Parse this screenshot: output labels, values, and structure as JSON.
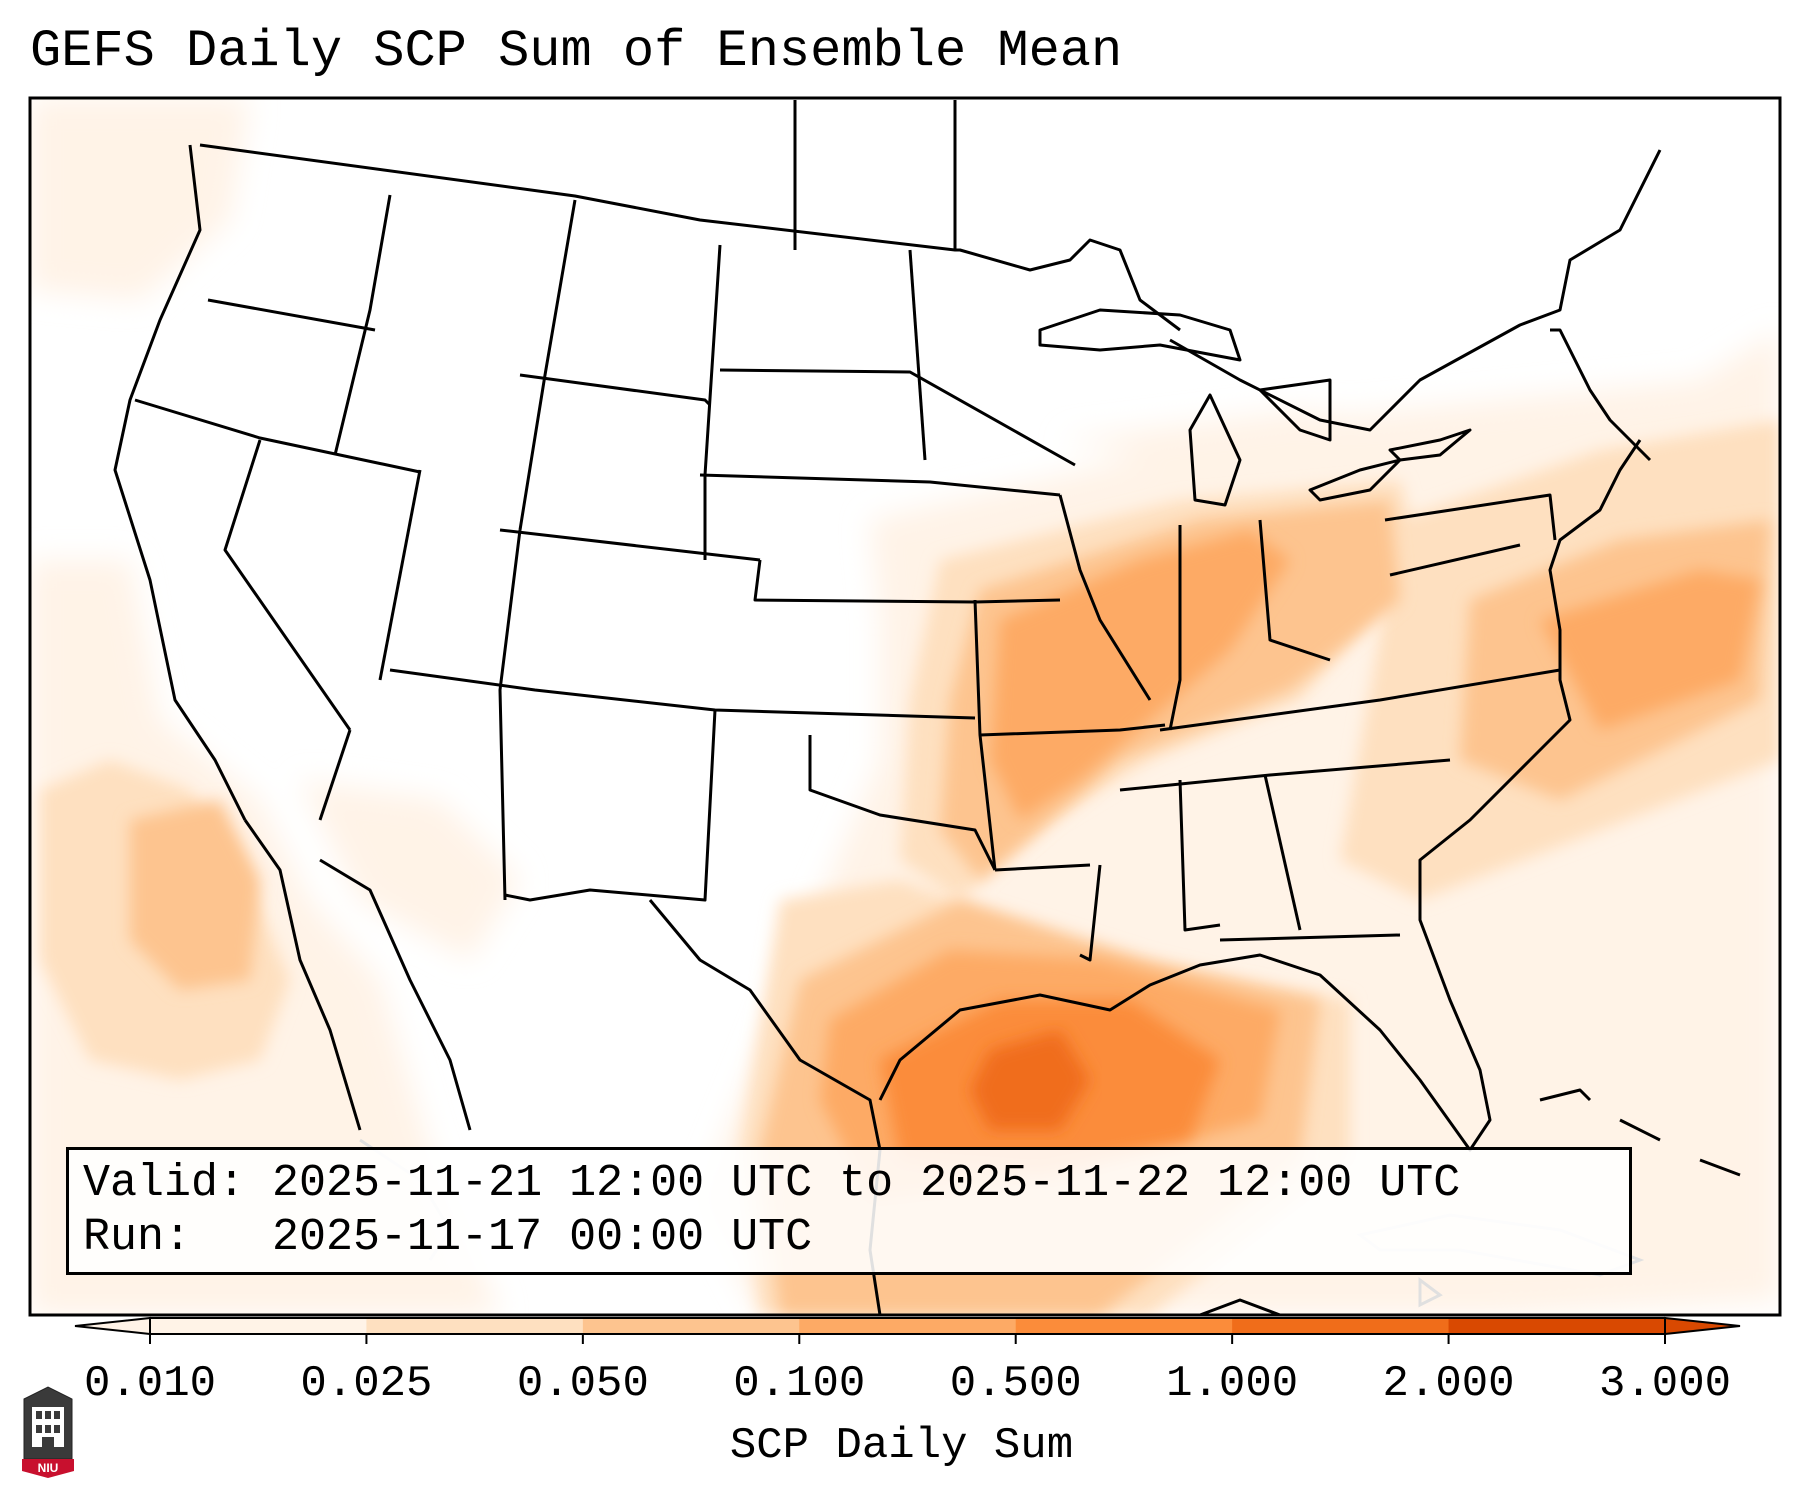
{
  "title": "GEFS Daily SCP Sum of Ensemble Mean",
  "valid_box": {
    "line1": "Valid: 2025-11-21 12:00 UTC to 2025-11-22 12:00 UTC",
    "line2": "Run:   2025-11-17 00:00 UTC"
  },
  "colorbar": {
    "label": "SCP Daily Sum",
    "ticks": [
      "0.010",
      "0.025",
      "0.050",
      "0.100",
      "0.500",
      "1.000",
      "2.000",
      "3.000"
    ],
    "colors": [
      "#fff3e7",
      "#fee0c0",
      "#fdc48f",
      "#fdaa65",
      "#fb8c3a",
      "#f06d1a",
      "#d94901"
    ],
    "extend": "both"
  },
  "logo": {
    "text": "NIU",
    "color": "#c8102e"
  },
  "map_fields": {
    "background": "#ffffff",
    "boundary_color": "#000000",
    "foreign_coast_color": "#e0e0e0"
  }
}
